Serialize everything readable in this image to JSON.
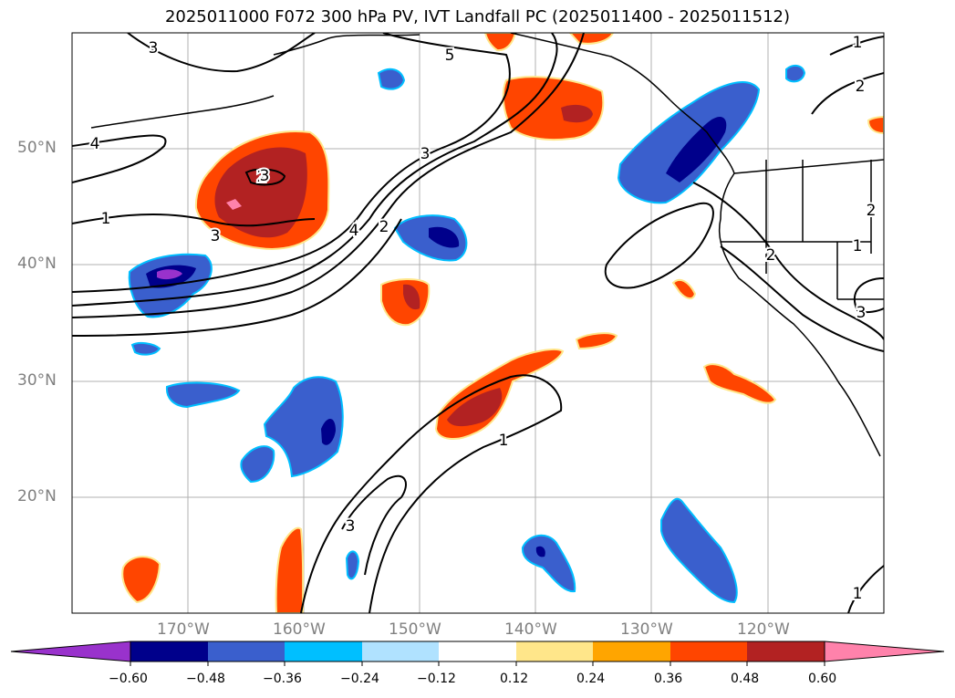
{
  "title": "2025011000 F072 300 hPa PV, IVT Landfall PC (2025011400 - 2025011512)",
  "map": {
    "lat_labels": [
      "50°N",
      "40°N",
      "30°N",
      "20°N"
    ],
    "lon_labels": [
      "170°W",
      "160°W",
      "150°W",
      "140°W",
      "130°W",
      "120°W"
    ],
    "contour_labels": [
      "3",
      "5",
      "4",
      "3",
      "2",
      "1",
      "3",
      "4",
      "2",
      "1",
      "3",
      "1",
      "2",
      "2",
      "1",
      "2",
      "3",
      "1",
      "3"
    ],
    "label_color": "#808080",
    "gridlines": true
  },
  "colorbar": {
    "ticks": [
      "−0.60",
      "−0.48",
      "−0.36",
      "−0.24",
      "−0.12",
      "0.12",
      "0.24",
      "0.36",
      "0.48",
      "0.60"
    ],
    "colors": [
      "#9932cc",
      "#00008b",
      "#3a5fcd",
      "#00bfff",
      "#b0e2ff",
      "#ffffff",
      "#ffe68a",
      "#ffa500",
      "#ff4500",
      "#b22222",
      "#ff82ab"
    ],
    "extend": "both"
  }
}
